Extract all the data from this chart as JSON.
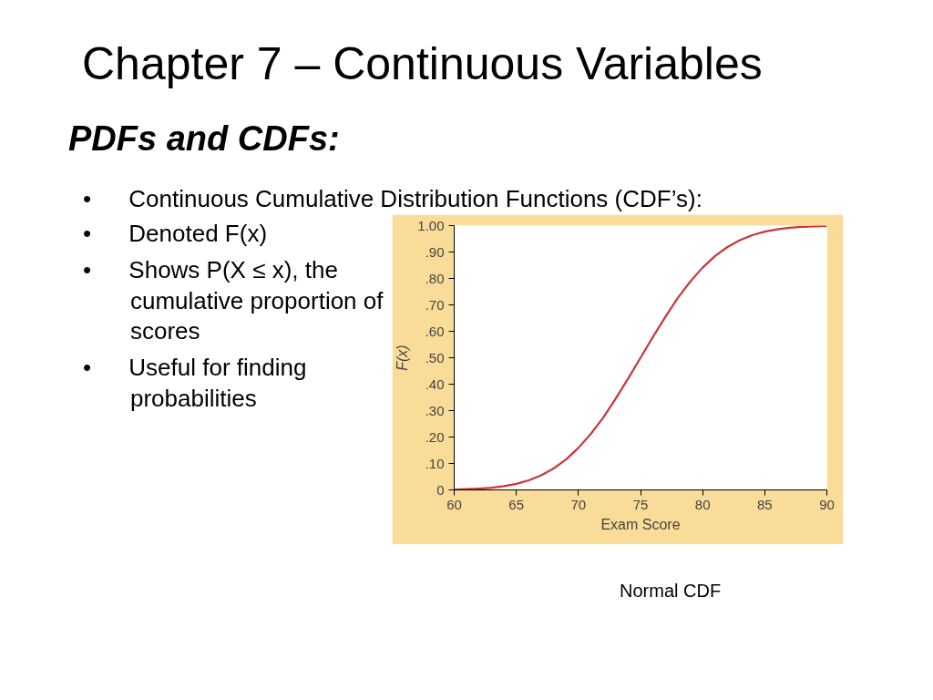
{
  "chart_data": {
    "type": "line",
    "title": "Chapter 7 – Continuous Variables",
    "subtitle": "PDFs and CDFs:",
    "xlabel": "Exam Score",
    "ylabel": "F(x)",
    "annotations": [
      "• Continuous Cumulative Distribution Functions (CDF’s):",
      "• Denoted F(x)",
      "• Shows P(X ≤ x), the cumulative proportion of scores",
      "• Useful for finding probabilities",
      "Normal CDF"
    ],
    "x": [
      60,
      61,
      62,
      63,
      64,
      65,
      66,
      67,
      68,
      69,
      70,
      71,
      72,
      73,
      74,
      75,
      76,
      77,
      78,
      79,
      80,
      81,
      82,
      83,
      84,
      85,
      86,
      87,
      88,
      89,
      90
    ],
    "series": [
      {
        "color": "#c8373a",
        "values": [
          0.001,
          0.003,
          0.005,
          0.008,
          0.014,
          0.023,
          0.036,
          0.055,
          0.081,
          0.115,
          0.159,
          0.212,
          0.274,
          0.345,
          0.421,
          0.5,
          0.579,
          0.655,
          0.726,
          0.788,
          0.841,
          0.885,
          0.919,
          0.945,
          0.964,
          0.977,
          0.986,
          0.992,
          0.995,
          0.997,
          0.999
        ]
      }
    ],
    "xlim": [
      60,
      90
    ],
    "ylim": [
      0,
      1
    ],
    "xticks": [
      60,
      65,
      70,
      75,
      80,
      85,
      90
    ],
    "yticks": [
      {
        "value": 0,
        "label": "0"
      },
      {
        "value": 0.1,
        "label": ".10"
      },
      {
        "value": 0.2,
        "label": ".20"
      },
      {
        "value": 0.3,
        "label": ".30"
      },
      {
        "value": 0.4,
        "label": ".40"
      },
      {
        "value": 0.5,
        "label": ".50"
      },
      {
        "value": 0.6,
        "label": ".60"
      },
      {
        "value": 0.7,
        "label": ".70"
      },
      {
        "value": 0.8,
        "label": ".80"
      },
      {
        "value": 0.9,
        "label": ".90"
      },
      {
        "value": 1,
        "label": "1.00"
      }
    ],
    "grid": false
  }
}
